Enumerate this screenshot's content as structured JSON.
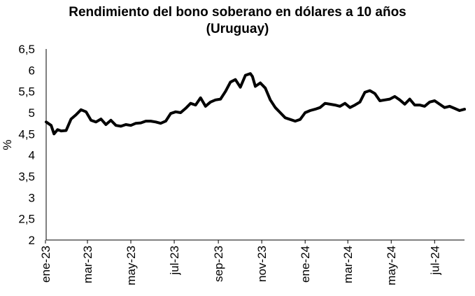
{
  "chart_data": {
    "type": "line",
    "title_line1": "Rendimiento del bono soberano en dólares a 10 años",
    "title_line2": "(Uruguay)",
    "xlabel": "",
    "ylabel": "%",
    "ylim": [
      2,
      6.5
    ],
    "y_ticks": [
      "2",
      "2,5",
      "3",
      "3,5",
      "4",
      "4,5",
      "5",
      "5,5",
      "6",
      "6,5"
    ],
    "x_ticks": [
      "ene-23",
      "mar-23",
      "may-23",
      "jul-23",
      "sep-23",
      "nov-23",
      "ene-24",
      "mar-24",
      "may-24",
      "jul-24"
    ],
    "x_range": [
      "2023-01-02",
      "2024-08-12"
    ],
    "line_color": "#000000",
    "grid": false,
    "series": [
      {
        "x": [
          "2023-01-02",
          "2023-01-09",
          "2023-01-13",
          "2023-01-18",
          "2023-01-23",
          "2023-01-30",
          "2023-02-06",
          "2023-02-13",
          "2023-02-20",
          "2023-02-27",
          "2023-03-06",
          "2023-03-13",
          "2023-03-20",
          "2023-03-27",
          "2023-04-03",
          "2023-04-10",
          "2023-04-17",
          "2023-04-24",
          "2023-05-01",
          "2023-05-08",
          "2023-05-15",
          "2023-05-22",
          "2023-05-29",
          "2023-06-05",
          "2023-06-12",
          "2023-06-19",
          "2023-06-26",
          "2023-07-03",
          "2023-07-10",
          "2023-07-17",
          "2023-07-24",
          "2023-07-31",
          "2023-08-07",
          "2023-08-14",
          "2023-08-21",
          "2023-08-28",
          "2023-09-04",
          "2023-09-11",
          "2023-09-18",
          "2023-09-25",
          "2023-10-02",
          "2023-10-09",
          "2023-10-16",
          "2023-10-19",
          "2023-10-23",
          "2023-10-30",
          "2023-11-06",
          "2023-11-13",
          "2023-11-20",
          "2023-11-27",
          "2023-12-04",
          "2023-12-11",
          "2023-12-18",
          "2023-12-25",
          "2024-01-01",
          "2024-01-08",
          "2024-01-15",
          "2024-01-22",
          "2024-01-29",
          "2024-02-05",
          "2024-02-12",
          "2024-02-19",
          "2024-02-26",
          "2024-03-04",
          "2024-03-11",
          "2024-03-18",
          "2024-03-25",
          "2024-04-01",
          "2024-04-08",
          "2024-04-15",
          "2024-04-22",
          "2024-04-29",
          "2024-05-06",
          "2024-05-13",
          "2024-05-20",
          "2024-05-27",
          "2024-06-03",
          "2024-06-10",
          "2024-06-17",
          "2024-06-24",
          "2024-07-01",
          "2024-07-08",
          "2024-07-15",
          "2024-07-22",
          "2024-07-29",
          "2024-08-05",
          "2024-08-12"
        ],
        "values": [
          4.78,
          4.7,
          4.5,
          4.6,
          4.57,
          4.58,
          4.85,
          4.95,
          5.07,
          5.02,
          4.82,
          4.78,
          4.85,
          4.72,
          4.82,
          4.7,
          4.68,
          4.72,
          4.7,
          4.75,
          4.76,
          4.8,
          4.8,
          4.78,
          4.75,
          4.8,
          4.98,
          5.02,
          5.0,
          5.1,
          5.22,
          5.18,
          5.35,
          5.15,
          5.25,
          5.3,
          5.32,
          5.5,
          5.72,
          5.78,
          5.6,
          5.88,
          5.92,
          5.85,
          5.62,
          5.7,
          5.58,
          5.3,
          5.12,
          5.0,
          4.88,
          4.84,
          4.8,
          4.84,
          5.0,
          5.05,
          5.08,
          5.12,
          5.22,
          5.2,
          5.18,
          5.15,
          5.22,
          5.12,
          5.18,
          5.25,
          5.48,
          5.52,
          5.45,
          5.28,
          5.3,
          5.32,
          5.38,
          5.3,
          5.2,
          5.32,
          5.18,
          5.18,
          5.15,
          5.25,
          5.28,
          5.2,
          5.12,
          5.15,
          5.1,
          5.05,
          5.08
        ]
      }
    ]
  }
}
